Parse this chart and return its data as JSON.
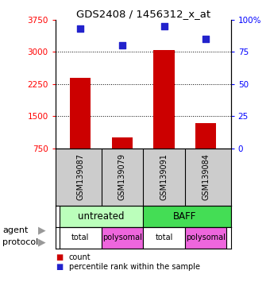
{
  "title": "GDS2408 / 1456312_x_at",
  "samples": [
    "GSM139087",
    "GSM139079",
    "GSM139091",
    "GSM139084"
  ],
  "bar_values": [
    2400,
    1000,
    3050,
    1350
  ],
  "dot_values": [
    93,
    80,
    95,
    85
  ],
  "bar_color": "#cc0000",
  "dot_color": "#2222cc",
  "ylim_left": [
    750,
    3750
  ],
  "ylim_right": [
    0,
    100
  ],
  "yticks_left": [
    750,
    1500,
    2250,
    3000,
    3750
  ],
  "ytick_labels_left": [
    "750",
    "1500",
    "2250",
    "3000",
    "3750"
  ],
  "yticks_right": [
    0,
    25,
    50,
    75,
    100
  ],
  "ytick_labels_right": [
    "0",
    "25",
    "50",
    "75",
    "100%"
  ],
  "grid_values": [
    1500,
    2250,
    3000
  ],
  "agent_untreated_color": "#bbffbb",
  "agent_baff_color": "#44dd55",
  "protocol_white": "#ffffff",
  "protocol_pink": "#ee66dd",
  "protocol_labels": [
    "total",
    "polysomal",
    "total",
    "polysomal"
  ],
  "legend_bar_label": "count",
  "legend_dot_label": "percentile rank within the sample",
  "x_positions": [
    0,
    1,
    2,
    3
  ],
  "bar_width": 0.5,
  "background_color": "#ffffff",
  "sample_bg": "#cccccc"
}
